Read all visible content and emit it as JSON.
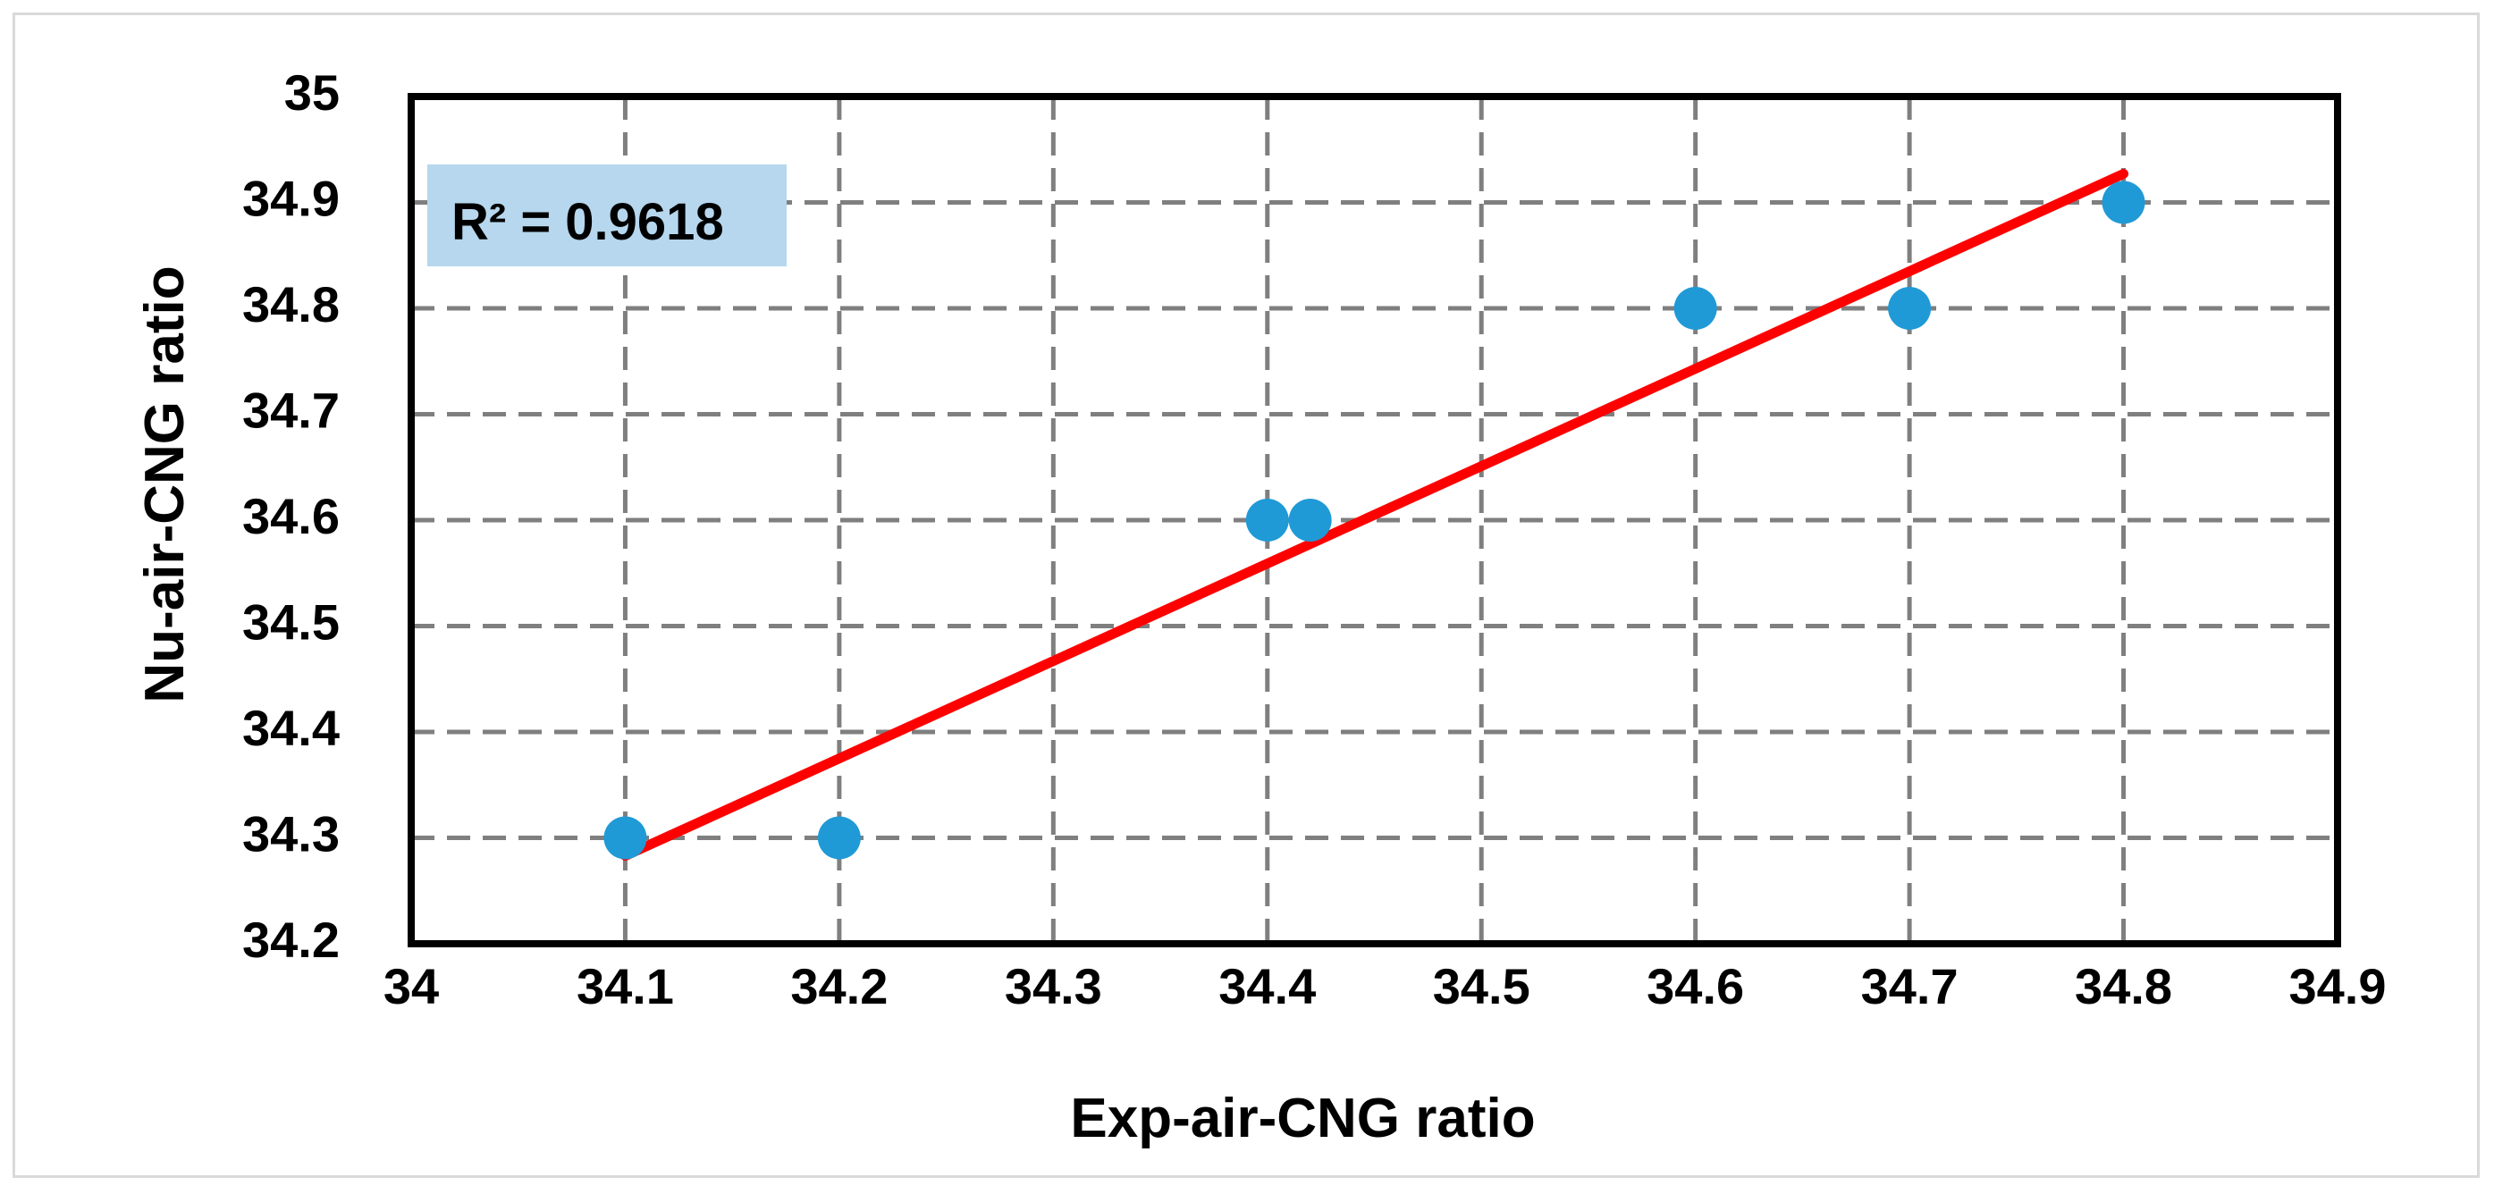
{
  "chart_data": {
    "type": "scatter",
    "title": "",
    "xlabel": "Exp-air-CNG ratio",
    "ylabel": "Nu-air-CNG ratio",
    "xlim": [
      34,
      34.9
    ],
    "ylim": [
      34.2,
      35
    ],
    "x_ticks": [
      "34",
      "34.1",
      "34.2",
      "34.3",
      "34.4",
      "34.5",
      "34.6",
      "34.7",
      "34.8",
      "34.9"
    ],
    "y_ticks": [
      "34.2",
      "34.3",
      "34.4",
      "34.5",
      "34.6",
      "34.7",
      "34.8",
      "34.9",
      "35"
    ],
    "grid": true,
    "series": [
      {
        "color": "#1f9ad6",
        "points": [
          {
            "x": 34.1,
            "y": 34.3
          },
          {
            "x": 34.2,
            "y": 34.3
          },
          {
            "x": 34.4,
            "y": 34.6
          },
          {
            "x": 34.42,
            "y": 34.6
          },
          {
            "x": 34.6,
            "y": 34.8
          },
          {
            "x": 34.7,
            "y": 34.8
          },
          {
            "x": 34.8,
            "y": 34.9
          }
        ]
      }
    ],
    "trendline": {
      "type": "linear",
      "color": "#ff0000",
      "x_start": 34.1,
      "y_start": 34.283,
      "x_end": 34.8,
      "y_end": 34.927
    },
    "annotation": {
      "text": "R² = 0.9618",
      "background": "#b6d7ee",
      "placement": "top-left"
    }
  }
}
